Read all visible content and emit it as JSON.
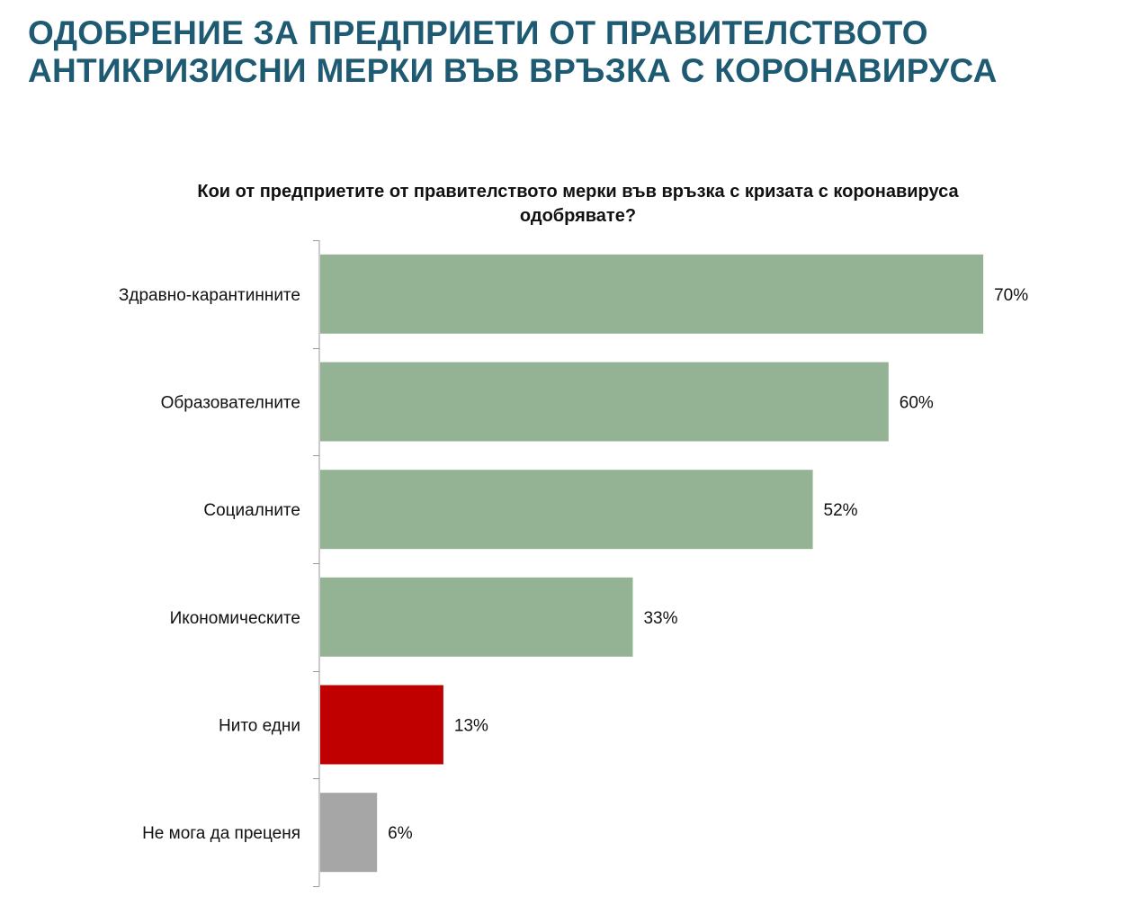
{
  "slide": {
    "title_line1": "ОДОБРЕНИЕ ЗА ПРЕДПРИЕТИ ОТ ПРАВИТЕЛСТВОТО",
    "title_line2": "АНТИКРИЗИСНИ МЕРКИ ВЪВ ВРЪЗКА С КОРОНАВИРУСА",
    "title_color": "#1f5a73"
  },
  "chart_data": {
    "type": "bar",
    "orientation": "horizontal",
    "title_line1": "Кои от предприетите от правителството мерки във връзка с кризата с коронавируса",
    "title_line2": "одобрявате?",
    "categories": [
      "Здравно-карантинните",
      "Образователните",
      "Социалните",
      "Икономическите",
      "Нито едни",
      "Не мога да преценя"
    ],
    "values": [
      70,
      60,
      52,
      33,
      13,
      6
    ],
    "value_labels": [
      "70%",
      "60%",
      "52%",
      "33%",
      "13%",
      "6%"
    ],
    "bar_colors": [
      "#93b394",
      "#93b394",
      "#93b394",
      "#93b394",
      "#c00000",
      "#a6a6a6"
    ],
    "unit": "%",
    "xlim": [
      0,
      100
    ],
    "grid": false,
    "legend": "none"
  }
}
